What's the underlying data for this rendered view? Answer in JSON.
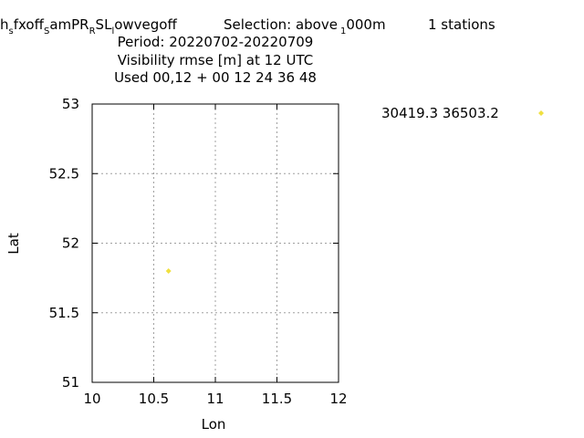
{
  "chart_data": {
    "type": "scatter",
    "title_line1_parts": {
      "h": "h",
      "h_sub": "s",
      "fxoff": "fxoff",
      "fxoff_sub": "S",
      "amPR": "amPR",
      "amPR_sub": "R",
      "SL": "SL",
      "SL_sub": "l",
      "owvegoff": "owvegoff",
      "selection": "Selection: above",
      "selection_sub": "1",
      "selection_end": "000m",
      "stations": "1 stations"
    },
    "title_lines": [
      "Period: 20220702-20220709",
      "Visibility rmse [m] at  12 UTC",
      "Used  00,12  + 00 12 24 36 48"
    ],
    "xlabel": "Lon",
    "ylabel": "Lat",
    "xlim": [
      10,
      12
    ],
    "ylim": [
      51,
      53
    ],
    "xticks": [
      "10",
      "10.5",
      "11",
      "11.5",
      "12"
    ],
    "yticks": [
      "51",
      "51.5",
      "52",
      "52.5",
      "53"
    ],
    "grid": true,
    "legend_position": "right",
    "legend_label": "30419.3 36503.2",
    "marker_color": "#f0e040",
    "points": [
      {
        "x": 10.62,
        "y": 51.8
      }
    ]
  }
}
